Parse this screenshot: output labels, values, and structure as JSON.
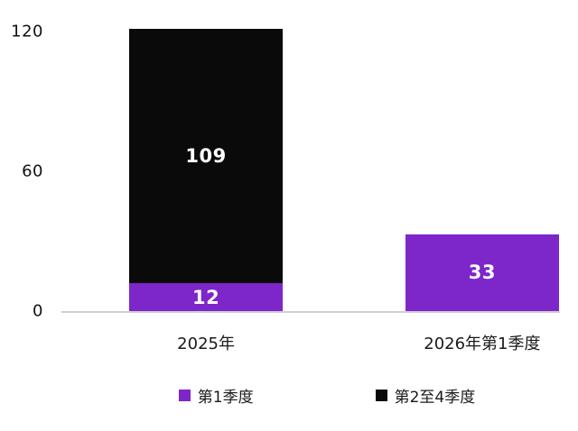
{
  "chart_data": {
    "type": "bar",
    "stacked": true,
    "title": "",
    "xlabel": "",
    "ylabel": "",
    "categories": [
      "2025年",
      "2026年第1季度"
    ],
    "series": [
      {
        "name": "第1季度",
        "color": "#7D26C9",
        "values": [
          12,
          33
        ]
      },
      {
        "name": "第2至4季度",
        "color": "#0A0A0A",
        "values": [
          109,
          0
        ]
      }
    ],
    "ylim": [
      0,
      120
    ],
    "yticks": [
      0,
      60,
      120
    ],
    "grid": false,
    "legend_position": "bottom"
  },
  "colors": {
    "axis_line": "#CFCFCF",
    "tick_text": "#111111",
    "bar_value_text": "#FFFFFF"
  }
}
